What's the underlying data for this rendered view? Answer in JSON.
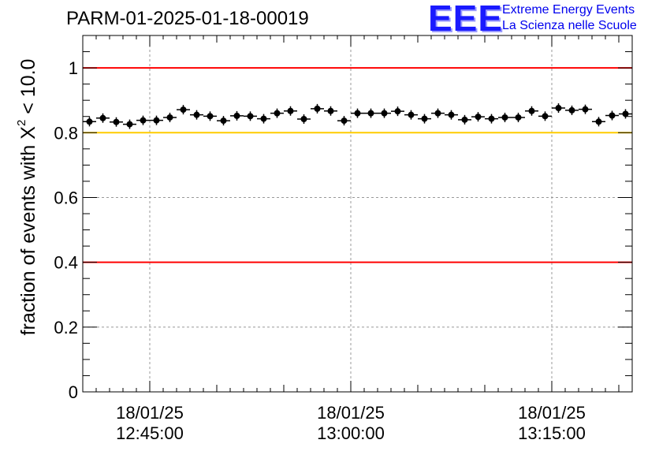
{
  "header": {
    "title": "PARM-01-2025-01-18-00019",
    "logo_text": "EEE",
    "logo_line1": "Extreme Energy Events",
    "logo_line2": "La Scienza nelle Scuole"
  },
  "chart_data": {
    "type": "scatter",
    "title": "PARM-01-2025-01-18-00019",
    "xlabel": "",
    "ylabel_prefix": "fraction of events with X",
    "ylabel_sup": "2",
    "ylabel_suffix": " < 10.0",
    "ylim": [
      0,
      1.1
    ],
    "yticks": [
      0,
      0.2,
      0.4,
      0.6,
      0.8,
      1
    ],
    "ytick_labels": [
      "0",
      "0.2",
      "0.4",
      "0.6",
      "0.8",
      "1"
    ],
    "xlim_minutes": [
      0,
      41
    ],
    "xticks_minutes": [
      5,
      20,
      35
    ],
    "xtick_labels_date": [
      "18/01/25",
      "18/01/25",
      "18/01/25"
    ],
    "xtick_labels_time": [
      "12:45:00",
      "13:00:00",
      "13:15:00"
    ],
    "grid": true,
    "reference_lines": [
      {
        "y": 1.0,
        "color": "#ff0000"
      },
      {
        "y": 0.8,
        "color": "#ffcc00"
      },
      {
        "y": 0.4,
        "color": "#ff0000"
      }
    ],
    "marker_color": "#000000",
    "series": [
      {
        "name": "fraction",
        "x": [
          0.5,
          1.5,
          2.5,
          3.5,
          4.5,
          5.5,
          6.5,
          7.5,
          8.5,
          9.5,
          10.5,
          11.5,
          12.5,
          13.5,
          14.5,
          15.5,
          16.5,
          17.5,
          18.5,
          19.5,
          20.5,
          21.5,
          22.5,
          23.5,
          24.5,
          25.5,
          26.5,
          27.5,
          28.5,
          29.5,
          30.5,
          31.5,
          32.5,
          33.5,
          34.5,
          35.5,
          36.5,
          37.5,
          38.5,
          39.5,
          40.5
        ],
        "y": [
          0.834,
          0.845,
          0.833,
          0.826,
          0.838,
          0.838,
          0.847,
          0.871,
          0.855,
          0.851,
          0.837,
          0.852,
          0.851,
          0.843,
          0.86,
          0.867,
          0.842,
          0.874,
          0.867,
          0.837,
          0.86,
          0.86,
          0.86,
          0.866,
          0.855,
          0.843,
          0.86,
          0.855,
          0.84,
          0.849,
          0.843,
          0.847,
          0.847,
          0.867,
          0.851,
          0.876,
          0.869,
          0.872,
          0.834,
          0.853,
          0.858
        ]
      }
    ]
  }
}
